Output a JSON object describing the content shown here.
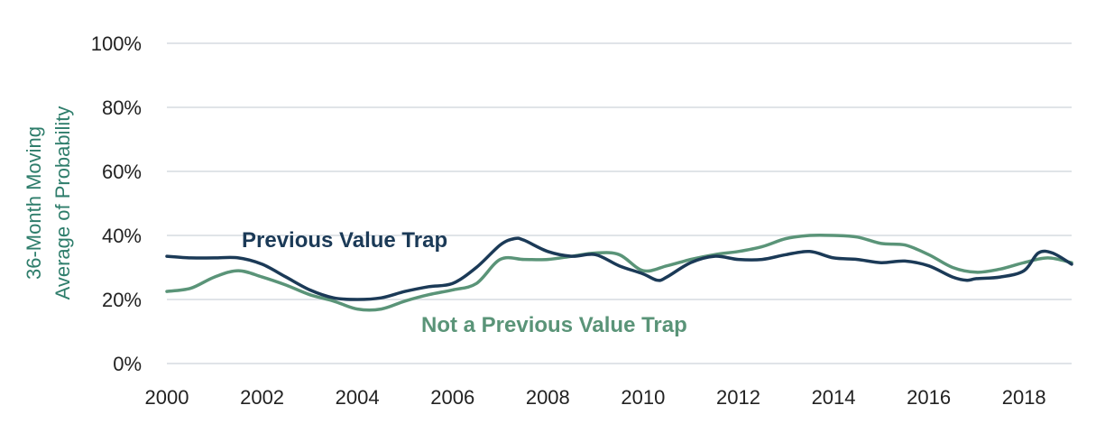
{
  "chart_data": {
    "type": "line",
    "title": "",
    "xlabel": "",
    "ylabel_lines": [
      "36-Month Moving",
      "Average of Probability"
    ],
    "xlim": [
      2000,
      2019
    ],
    "ylim": [
      0,
      100
    ],
    "x_ticks": [
      2000,
      2002,
      2004,
      2006,
      2008,
      2010,
      2012,
      2014,
      2016,
      2018
    ],
    "x_tick_labels": [
      "2000",
      "2002",
      "2004",
      "2006",
      "2008",
      "2010",
      "2012",
      "2014",
      "2016",
      "2018"
    ],
    "y_ticks": [
      0,
      20,
      40,
      60,
      80,
      100
    ],
    "y_tick_labels": [
      "0%",
      "20%",
      "40%",
      "60%",
      "80%",
      "100%"
    ],
    "grid": true,
    "series": [
      {
        "name": "Previous Value Trap",
        "color": "#1b3a57",
        "x": [
          2000,
          2000.5,
          2001,
          2001.5,
          2002,
          2002.5,
          2003,
          2003.5,
          2004,
          2004.5,
          2005,
          2005.5,
          2006,
          2006.5,
          2007,
          2007.3,
          2007.5,
          2008,
          2008.5,
          2009,
          2009.5,
          2010,
          2010.3,
          2010.5,
          2011,
          2011.5,
          2012,
          2012.5,
          2013,
          2013.5,
          2014,
          2014.5,
          2015,
          2015.5,
          2016,
          2016.5,
          2016.8,
          2017,
          2017.5,
          2018,
          2018.3,
          2018.6,
          2019
        ],
        "values": [
          33.5,
          33,
          33,
          33,
          31,
          27,
          23,
          20.5,
          20,
          20.5,
          22.5,
          24,
          25,
          30,
          37,
          39,
          38.5,
          35,
          33.5,
          34,
          30.5,
          28,
          26,
          27,
          31.5,
          33.5,
          32.5,
          32.5,
          34,
          35,
          33,
          32.5,
          31.5,
          32,
          30.5,
          27,
          26,
          26.5,
          27,
          29,
          34.5,
          34.5,
          31
        ]
      },
      {
        "name": "Not a Previous Value Trap",
        "color": "#5a9478",
        "x": [
          2000,
          2000.5,
          2001,
          2001.5,
          2002,
          2002.5,
          2003,
          2003.5,
          2004,
          2004.5,
          2005,
          2005.5,
          2006,
          2006.5,
          2007,
          2007.5,
          2008,
          2008.5,
          2009,
          2009.5,
          2010,
          2010.5,
          2011,
          2011.5,
          2012,
          2012.5,
          2013,
          2013.5,
          2014,
          2014.5,
          2015,
          2015.5,
          2016,
          2016.5,
          2017,
          2017.5,
          2018,
          2018.5,
          2019
        ],
        "values": [
          22.5,
          23.5,
          27,
          29,
          27,
          24.5,
          21.5,
          19.5,
          17,
          17,
          19.5,
          21.5,
          23,
          25,
          32.5,
          32.5,
          32.5,
          33.5,
          34.5,
          34,
          29,
          30.5,
          32.5,
          34,
          35,
          36.5,
          39,
          40,
          40,
          39.5,
          37.5,
          37,
          34,
          30,
          28.5,
          29.5,
          31.5,
          33,
          31.5
        ]
      }
    ],
    "annotations": [
      {
        "text": "Previous Value Trap",
        "series": 0
      },
      {
        "text": "Not a Previous Value Trap",
        "series": 1
      }
    ]
  }
}
